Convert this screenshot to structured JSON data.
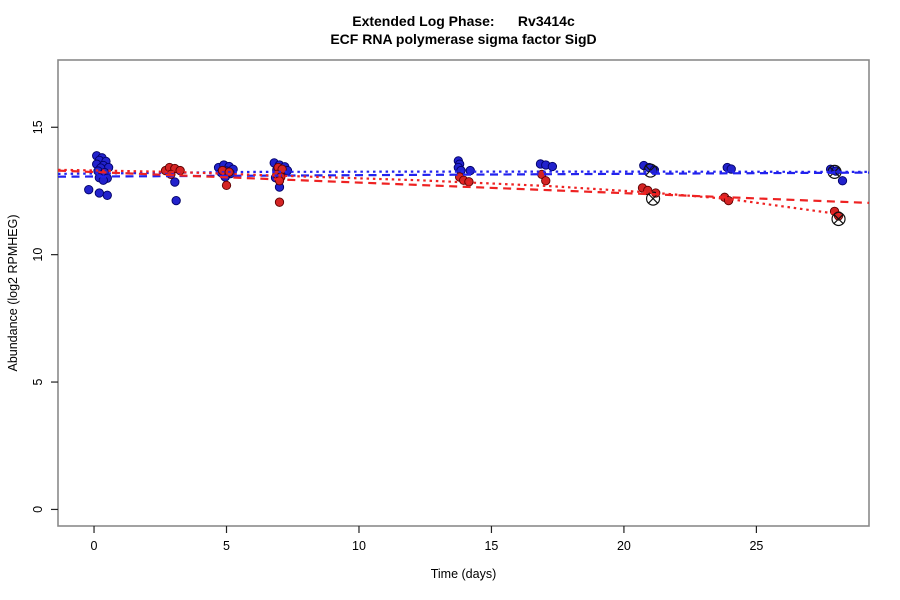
{
  "chart_data": {
    "type": "scatter",
    "title": "Extended Log Phase:      Rv3414c",
    "subtitle": "ECF RNA polymerase sigma factor SigD",
    "xlabel": "Time  (days)",
    "ylabel": "Abundance  (log2 RPMHEG)",
    "xlim": [
      -1.36,
      29.25
    ],
    "ylim": [
      -0.65,
      17.64
    ],
    "xticks": [
      0,
      5,
      10,
      15,
      20,
      25
    ],
    "yticks": [
      0,
      5,
      10,
      15
    ],
    "grid": false,
    "legend": "none",
    "colors": {
      "blue_points": "#2222cc",
      "red_points": "#d42424",
      "blue_point_stroke": "#000066",
      "red_point_stroke": "#5c0000",
      "blue_line": "#2222ee",
      "red_line": "#ee2222",
      "marker_outline": "#111111",
      "box": "#8a8a8a",
      "tick": "#222222"
    },
    "series": [
      {
        "name": "replicate-group-blue",
        "type": "points",
        "color_key": "blue_points",
        "stroke_key": "blue_point_stroke",
        "points": [
          [
            0.1,
            13.88
          ],
          [
            0.3,
            13.8
          ],
          [
            0.2,
            13.7
          ],
          [
            0.45,
            13.66
          ],
          [
            0.1,
            13.55
          ],
          [
            0.35,
            13.5
          ],
          [
            0.55,
            13.42
          ],
          [
            0.25,
            13.4
          ],
          [
            0.15,
            13.28
          ],
          [
            0.4,
            13.22
          ],
          [
            0.3,
            13.12
          ],
          [
            0.2,
            13.02
          ],
          [
            0.5,
            13.0
          ],
          [
            0.35,
            12.92
          ],
          [
            -0.2,
            12.55
          ],
          [
            0.2,
            12.42
          ],
          [
            0.5,
            12.33
          ],
          [
            3.05,
            12.85
          ],
          [
            3.1,
            12.12
          ],
          [
            4.7,
            13.42
          ],
          [
            4.9,
            13.52
          ],
          [
            5.1,
            13.46
          ],
          [
            5.25,
            13.35
          ],
          [
            4.8,
            13.22
          ],
          [
            5.15,
            13.18
          ],
          [
            5.0,
            13.28
          ],
          [
            4.95,
            13.05
          ],
          [
            6.8,
            13.6
          ],
          [
            7.0,
            13.52
          ],
          [
            7.2,
            13.45
          ],
          [
            6.9,
            13.32
          ],
          [
            7.15,
            13.22
          ],
          [
            7.3,
            13.3
          ],
          [
            6.85,
            13.02
          ],
          [
            7.0,
            12.65
          ],
          [
            13.75,
            13.68
          ],
          [
            13.8,
            13.55
          ],
          [
            13.75,
            13.42
          ],
          [
            13.85,
            13.3
          ],
          [
            14.2,
            13.3
          ],
          [
            16.85,
            13.56
          ],
          [
            17.05,
            13.52
          ],
          [
            17.3,
            13.46
          ],
          [
            20.75,
            13.5
          ],
          [
            20.95,
            13.42
          ],
          [
            21.15,
            13.32
          ],
          [
            23.9,
            13.42
          ],
          [
            24.05,
            13.36
          ],
          [
            27.8,
            13.35
          ],
          [
            28.0,
            13.28
          ],
          [
            28.25,
            12.9
          ]
        ]
      },
      {
        "name": "replicate-group-red",
        "type": "points",
        "color_key": "red_points",
        "stroke_key": "red_point_stroke",
        "points": [
          [
            2.7,
            13.3
          ],
          [
            2.85,
            13.42
          ],
          [
            3.05,
            13.38
          ],
          [
            3.25,
            13.3
          ],
          [
            2.9,
            13.15
          ],
          [
            4.85,
            13.3
          ],
          [
            5.1,
            13.24
          ],
          [
            5.0,
            12.72
          ],
          [
            6.95,
            13.42
          ],
          [
            7.1,
            13.35
          ],
          [
            6.9,
            13.15
          ],
          [
            7.05,
            13.05
          ],
          [
            7.0,
            12.9
          ],
          [
            7.0,
            12.06
          ],
          [
            13.8,
            13.05
          ],
          [
            13.95,
            12.92
          ],
          [
            14.15,
            12.86
          ],
          [
            16.9,
            13.15
          ],
          [
            17.05,
            12.9
          ],
          [
            20.7,
            12.62
          ],
          [
            20.9,
            12.52
          ],
          [
            21.2,
            12.42
          ],
          [
            23.8,
            12.25
          ],
          [
            23.95,
            12.12
          ],
          [
            27.95,
            11.7
          ],
          [
            28.1,
            11.52
          ]
        ]
      },
      {
        "name": "flagged-outliers",
        "type": "circle-x",
        "color_key": "marker_outline",
        "points": [
          [
            21.0,
            13.3
          ],
          [
            21.1,
            12.2
          ],
          [
            27.95,
            13.25
          ],
          [
            28.1,
            11.4
          ]
        ]
      }
    ],
    "trend_lines": [
      {
        "name": "blue-dotted-fit",
        "color_key": "blue_line",
        "dash": "dotted",
        "points": [
          [
            -1.36,
            13.17
          ],
          [
            6,
            13.25
          ],
          [
            12,
            13.26
          ],
          [
            20,
            13.26
          ],
          [
            29.25,
            13.25
          ]
        ]
      },
      {
        "name": "blue-dashed-fit",
        "color_key": "blue_line",
        "dash": "dashed",
        "points": [
          [
            -1.36,
            13.06
          ],
          [
            29.25,
            13.22
          ]
        ]
      },
      {
        "name": "red-dashed-fit",
        "color_key": "red_line",
        "dash": "dashed",
        "points": [
          [
            -1.36,
            13.3
          ],
          [
            29.25,
            12.03
          ]
        ]
      },
      {
        "name": "red-dotted-fit",
        "color_key": "red_line",
        "dash": "dotted",
        "points": [
          [
            -1.36,
            13.33
          ],
          [
            3,
            13.25
          ],
          [
            7,
            13.1
          ],
          [
            12.3,
            12.92
          ],
          [
            17.2,
            12.69
          ],
          [
            21,
            12.44
          ],
          [
            24,
            12.18
          ],
          [
            28.2,
            11.58
          ]
        ]
      }
    ]
  }
}
